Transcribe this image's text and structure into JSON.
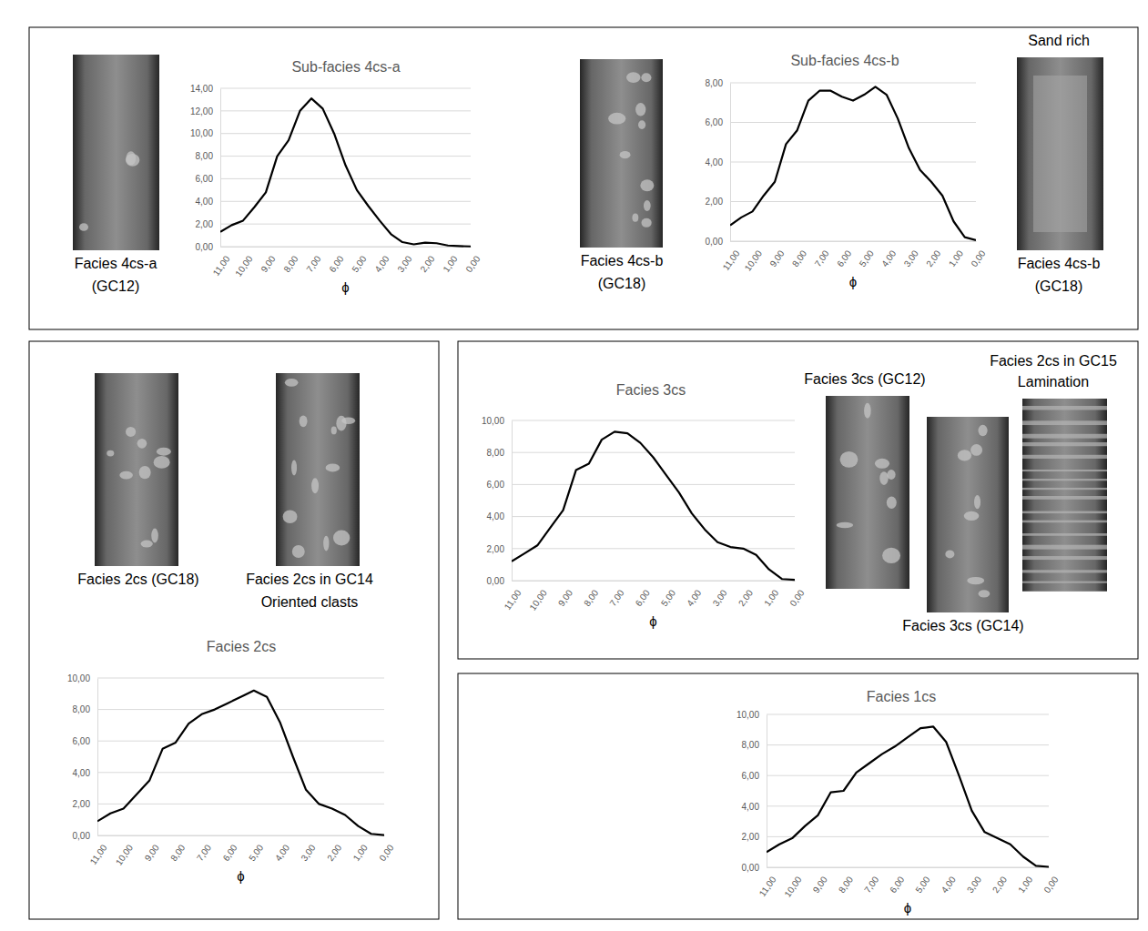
{
  "chart_data": [
    {
      "type": "line",
      "title": "Sub-facies 4cs-a",
      "x_label": "ϕ",
      "color": "#000000",
      "grid": true,
      "x": [
        11,
        10.5,
        10,
        9.5,
        9,
        8.5,
        8,
        7.5,
        7,
        6.5,
        6,
        5.5,
        5,
        4.5,
        4,
        3.5,
        3,
        2.5,
        2,
        1.5,
        1,
        0.5,
        0
      ],
      "values": [
        1.3,
        1.9,
        2.3,
        3.5,
        4.8,
        8.0,
        9.4,
        12.0,
        13.1,
        12.2,
        10.0,
        7.2,
        5.0,
        3.6,
        2.3,
        1.1,
        0.4,
        0.2,
        0.35,
        0.3,
        0.1,
        0.05,
        0.02
      ],
      "xlim": [
        11,
        0
      ],
      "xticks": [
        {
          "value": 11,
          "label": "11,00"
        },
        {
          "value": 10,
          "label": "10,00"
        },
        {
          "value": 9,
          "label": "9,00"
        },
        {
          "value": 8,
          "label": "8,00"
        },
        {
          "value": 7,
          "label": "7,00"
        },
        {
          "value": 6,
          "label": "6,00"
        },
        {
          "value": 5,
          "label": "5,00"
        },
        {
          "value": 4,
          "label": "4,00"
        },
        {
          "value": 3,
          "label": "3,00"
        },
        {
          "value": 2,
          "label": "2,00"
        },
        {
          "value": 1,
          "label": "1,00"
        },
        {
          "value": 0,
          "label": "0,00"
        }
      ],
      "ylim": [
        0,
        14
      ],
      "yticks": [
        {
          "value": 0,
          "label": "0,00"
        },
        {
          "value": 2,
          "label": "2,00"
        },
        {
          "value": 4,
          "label": "4,00"
        },
        {
          "value": 6,
          "label": "6,00"
        },
        {
          "value": 8,
          "label": "8,00"
        },
        {
          "value": 10,
          "label": "10,00"
        },
        {
          "value": 12,
          "label": "12,00"
        },
        {
          "value": 14,
          "label": "14,00"
        }
      ]
    },
    {
      "type": "line",
      "title": "Sub-facies 4cs-b",
      "x_label": "ϕ",
      "color": "#000000",
      "grid": true,
      "x": [
        11,
        10.5,
        10,
        9.5,
        9,
        8.5,
        8,
        7.5,
        7,
        6.5,
        6,
        5.5,
        5,
        4.5,
        4,
        3.5,
        3,
        2.5,
        2,
        1.5,
        1,
        0.5,
        0
      ],
      "values": [
        0.8,
        1.2,
        1.5,
        2.3,
        3.0,
        4.9,
        5.6,
        7.1,
        7.6,
        7.6,
        7.3,
        7.1,
        7.4,
        7.8,
        7.4,
        6.2,
        4.7,
        3.6,
        3.0,
        2.3,
        1.0,
        0.2,
        0.05
      ],
      "xlim": [
        11,
        0
      ],
      "xticks": [
        {
          "value": 11,
          "label": "11,00"
        },
        {
          "value": 10,
          "label": "10,00"
        },
        {
          "value": 9,
          "label": "9,00"
        },
        {
          "value": 8,
          "label": "8,00"
        },
        {
          "value": 7,
          "label": "7,00"
        },
        {
          "value": 6,
          "label": "6,00"
        },
        {
          "value": 5,
          "label": "5,00"
        },
        {
          "value": 4,
          "label": "4,00"
        },
        {
          "value": 3,
          "label": "3,00"
        },
        {
          "value": 2,
          "label": "2,00"
        },
        {
          "value": 1,
          "label": "1,00"
        },
        {
          "value": 0,
          "label": "0,00"
        }
      ],
      "ylim": [
        0,
        8
      ],
      "yticks": [
        {
          "value": 0,
          "label": "0,00"
        },
        {
          "value": 2,
          "label": "2,00"
        },
        {
          "value": 4,
          "label": "4,00"
        },
        {
          "value": 6,
          "label": "6,00"
        },
        {
          "value": 8,
          "label": "8,00"
        }
      ]
    },
    {
      "type": "line",
      "title": "Facies 2cs",
      "x_label": "ϕ",
      "color": "#000000",
      "grid": true,
      "x": [
        11,
        10.5,
        10,
        9.5,
        9,
        8.5,
        8,
        7.5,
        7,
        6.5,
        6,
        5.5,
        5,
        4.5,
        4,
        3.5,
        3,
        2.5,
        2,
        1.5,
        1,
        0.5,
        0
      ],
      "values": [
        0.9,
        1.4,
        1.7,
        2.6,
        3.5,
        5.5,
        5.9,
        7.1,
        7.7,
        8.0,
        8.4,
        8.8,
        9.2,
        8.8,
        7.2,
        5.0,
        2.9,
        2.0,
        1.7,
        1.3,
        0.6,
        0.1,
        0.02
      ],
      "xlim": [
        11,
        0
      ],
      "xticks": [
        {
          "value": 11,
          "label": "11,00"
        },
        {
          "value": 10,
          "label": "10,00"
        },
        {
          "value": 9,
          "label": "9,00"
        },
        {
          "value": 8,
          "label": "8,00"
        },
        {
          "value": 7,
          "label": "7,00"
        },
        {
          "value": 6,
          "label": "6,00"
        },
        {
          "value": 5,
          "label": "5,00"
        },
        {
          "value": 4,
          "label": "4,00"
        },
        {
          "value": 3,
          "label": "3,00"
        },
        {
          "value": 2,
          "label": "2,00"
        },
        {
          "value": 1,
          "label": "1,00"
        },
        {
          "value": 0,
          "label": "0,00"
        }
      ],
      "ylim": [
        0,
        10
      ],
      "yticks": [
        {
          "value": 0,
          "label": "0,00"
        },
        {
          "value": 2,
          "label": "2,00"
        },
        {
          "value": 4,
          "label": "4,00"
        },
        {
          "value": 6,
          "label": "6,00"
        },
        {
          "value": 8,
          "label": "8,00"
        },
        {
          "value": 10,
          "label": "10,00"
        }
      ]
    },
    {
      "type": "line",
      "title": "Facies 3cs",
      "x_label": "ϕ",
      "color": "#000000",
      "grid": true,
      "x": [
        11,
        10.5,
        10,
        9.5,
        9,
        8.5,
        8,
        7.5,
        7,
        6.5,
        6,
        5.5,
        5,
        4.5,
        4,
        3.5,
        3,
        2.5,
        2,
        1.5,
        1,
        0.5,
        0
      ],
      "values": [
        1.2,
        1.7,
        2.2,
        3.3,
        4.4,
        6.9,
        7.3,
        8.8,
        9.3,
        9.2,
        8.6,
        7.7,
        6.6,
        5.5,
        4.2,
        3.2,
        2.4,
        2.1,
        2.0,
        1.6,
        0.7,
        0.1,
        0.05
      ],
      "xlim": [
        11,
        0
      ],
      "xticks": [
        {
          "value": 11,
          "label": "11,00"
        },
        {
          "value": 10,
          "label": "10,00"
        },
        {
          "value": 9,
          "label": "9,00"
        },
        {
          "value": 8,
          "label": "8,00"
        },
        {
          "value": 7,
          "label": "7,00"
        },
        {
          "value": 6,
          "label": "6,00"
        },
        {
          "value": 5,
          "label": "5,00"
        },
        {
          "value": 4,
          "label": "4,00"
        },
        {
          "value": 3,
          "label": "3,00"
        },
        {
          "value": 2,
          "label": "2,00"
        },
        {
          "value": 1,
          "label": "1,00"
        },
        {
          "value": 0,
          "label": "0,00"
        }
      ],
      "ylim": [
        0,
        10
      ],
      "yticks": [
        {
          "value": 0,
          "label": "0,00"
        },
        {
          "value": 2,
          "label": "2,00"
        },
        {
          "value": 4,
          "label": "4,00"
        },
        {
          "value": 6,
          "label": "6,00"
        },
        {
          "value": 8,
          "label": "8,00"
        },
        {
          "value": 10,
          "label": "10,00"
        }
      ]
    },
    {
      "type": "line",
      "title": "Facies 1cs",
      "x_label": "ϕ",
      "color": "#000000",
      "grid": true,
      "x": [
        11,
        10.5,
        10,
        9.5,
        9,
        8.5,
        8,
        7.5,
        7,
        6.5,
        6,
        5.5,
        5,
        4.5,
        4,
        3.5,
        3,
        2.5,
        2,
        1.5,
        1,
        0.5,
        0
      ],
      "values": [
        1.0,
        1.5,
        1.9,
        2.7,
        3.4,
        4.9,
        5.0,
        6.2,
        6.8,
        7.4,
        7.9,
        8.5,
        9.1,
        9.2,
        8.2,
        6.0,
        3.7,
        2.3,
        1.9,
        1.5,
        0.7,
        0.1,
        0.03
      ],
      "xlim": [
        11,
        0
      ],
      "xticks": [
        {
          "value": 11,
          "label": "11,00"
        },
        {
          "value": 10,
          "label": "10,00"
        },
        {
          "value": 9,
          "label": "9,00"
        },
        {
          "value": 8,
          "label": "8,00"
        },
        {
          "value": 7,
          "label": "7,00"
        },
        {
          "value": 6,
          "label": "6,00"
        },
        {
          "value": 5,
          "label": "5,00"
        },
        {
          "value": 4,
          "label": "4,00"
        },
        {
          "value": 3,
          "label": "3,00"
        },
        {
          "value": 2,
          "label": "2,00"
        },
        {
          "value": 1,
          "label": "1,00"
        },
        {
          "value": 0,
          "label": "0,00"
        }
      ],
      "ylim": [
        0,
        10
      ],
      "yticks": [
        {
          "value": 0,
          "label": "0,00"
        },
        {
          "value": 2,
          "label": "2,00"
        },
        {
          "value": 4,
          "label": "4,00"
        },
        {
          "value": 6,
          "label": "6,00"
        },
        {
          "value": 8,
          "label": "8,00"
        },
        {
          "value": 10,
          "label": "10,00"
        }
      ]
    }
  ],
  "core_images": [
    {
      "caption": [
        "Facies 4cs-a",
        "(GC12)"
      ]
    },
    {
      "caption": [
        "Facies 4cs-b",
        "(GC18)"
      ]
    },
    {
      "heading": [
        "Sand rich"
      ],
      "caption": [
        "Facies 4cs-b",
        "(GC18)"
      ]
    },
    {
      "caption": [
        "Facies 2cs (GC18)"
      ]
    },
    {
      "caption": [
        "Facies 2cs in GC14",
        "Oriented clasts"
      ]
    },
    {
      "heading": [
        "Facies 3cs (GC12)"
      ]
    },
    {
      "caption": [
        "Facies 3cs (GC14)"
      ]
    },
    {
      "heading": [
        "Facies 2cs in GC15",
        "Lamination"
      ]
    }
  ]
}
